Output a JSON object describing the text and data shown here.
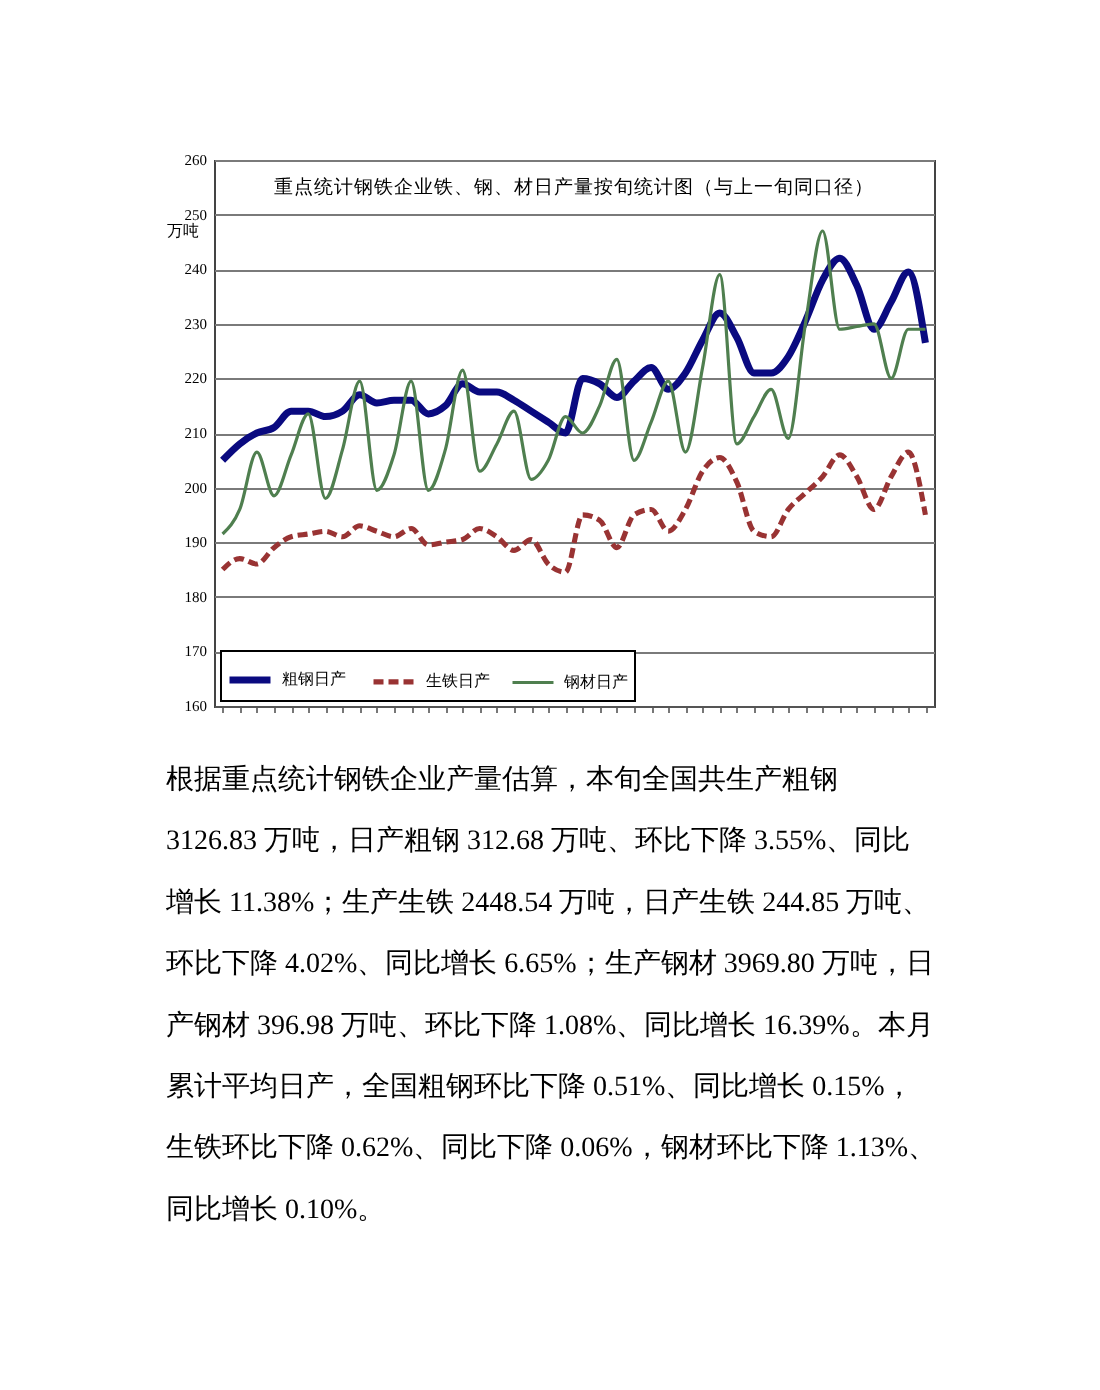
{
  "chart_data": {
    "type": "line",
    "title": "重点统计钢铁企业铁、钢、材日产量按旬统计图（与上一旬同口径）",
    "ylabel": "万吨",
    "categories": [
      null,
      null,
      null,
      null,
      null,
      null,
      null,
      null,
      null,
      null,
      null,
      null,
      null,
      null,
      null,
      null,
      null,
      null,
      null,
      null,
      null,
      null,
      null,
      null,
      null,
      null,
      null,
      null,
      null,
      null,
      null,
      null,
      null,
      null,
      null,
      null,
      null,
      null,
      null,
      null,
      null,
      null
    ],
    "series": [
      {
        "name": "粗钢日产",
        "color": "#0a0a80",
        "values": [
          205,
          208,
          210,
          211,
          214,
          214,
          213,
          214,
          217,
          215.5,
          216,
          216,
          213.5,
          215,
          219,
          217.5,
          217.5,
          216,
          214,
          212,
          210,
          220,
          219,
          216.5,
          219.5,
          222,
          218,
          221,
          227,
          232,
          227.5,
          221,
          221,
          224,
          230.5,
          238,
          242,
          237,
          229,
          234,
          239.5,
          226.5
        ]
      },
      {
        "name": "生铁日产",
        "color": "#993333",
        "line_style": "dashed",
        "values": [
          185,
          187,
          186,
          189,
          191,
          191.5,
          192,
          191,
          193,
          192,
          191,
          192.5,
          189.5,
          190,
          190.5,
          192.5,
          191,
          188.5,
          190.5,
          186,
          184.5,
          195,
          194,
          189,
          195,
          196,
          192,
          196,
          203,
          205.5,
          201,
          192,
          191,
          196,
          199,
          202,
          206,
          202,
          196,
          202,
          206.5,
          195
        ]
      },
      {
        "name": "钢材日产",
        "color": "#4f7f4f",
        "values": [
          191.5,
          196,
          206.5,
          198.5,
          206,
          213.5,
          198,
          207,
          219.5,
          199.5,
          206,
          219.5,
          199.5,
          207,
          221.5,
          203,
          208,
          214,
          201.5,
          205,
          213,
          210,
          215,
          223.5,
          205,
          212,
          219.5,
          206.5,
          222,
          239,
          208,
          213,
          218,
          209,
          230,
          247,
          229,
          229.5,
          230,
          220,
          229,
          229
        ]
      }
    ],
    "ylim": [
      160,
      260
    ],
    "yticks": [
      160,
      170,
      180,
      190,
      200,
      210,
      220,
      230,
      240,
      250,
      260
    ],
    "grid": "y",
    "legend": "bottom left",
    "tick_labels": "y",
    "annotations": [
      "根据重点统计钢铁企业产量估算，本旬全国共生产粗钢 3126.83 万吨，日产粗钢 312.68 万吨、环比下降 3.55%、同比增长 11.38%；生产生铁 2448.54 万吨，日产生铁 244.85 万吨、环比下降 4.02%、同比增长 6.65%；生产钢材 3969.80 万吨，日产钢材 396.98 万吨、环比下降 1.08%、同比增长 16.39%。本月累计平均日产，全国粗钢环比下降 0.51%、同比增长 0.15%，生铁环比下降 0.62%、同比下降 0.06%，钢材环比下降 1.13%、同比增长 0.10%。"
    ]
  }
}
